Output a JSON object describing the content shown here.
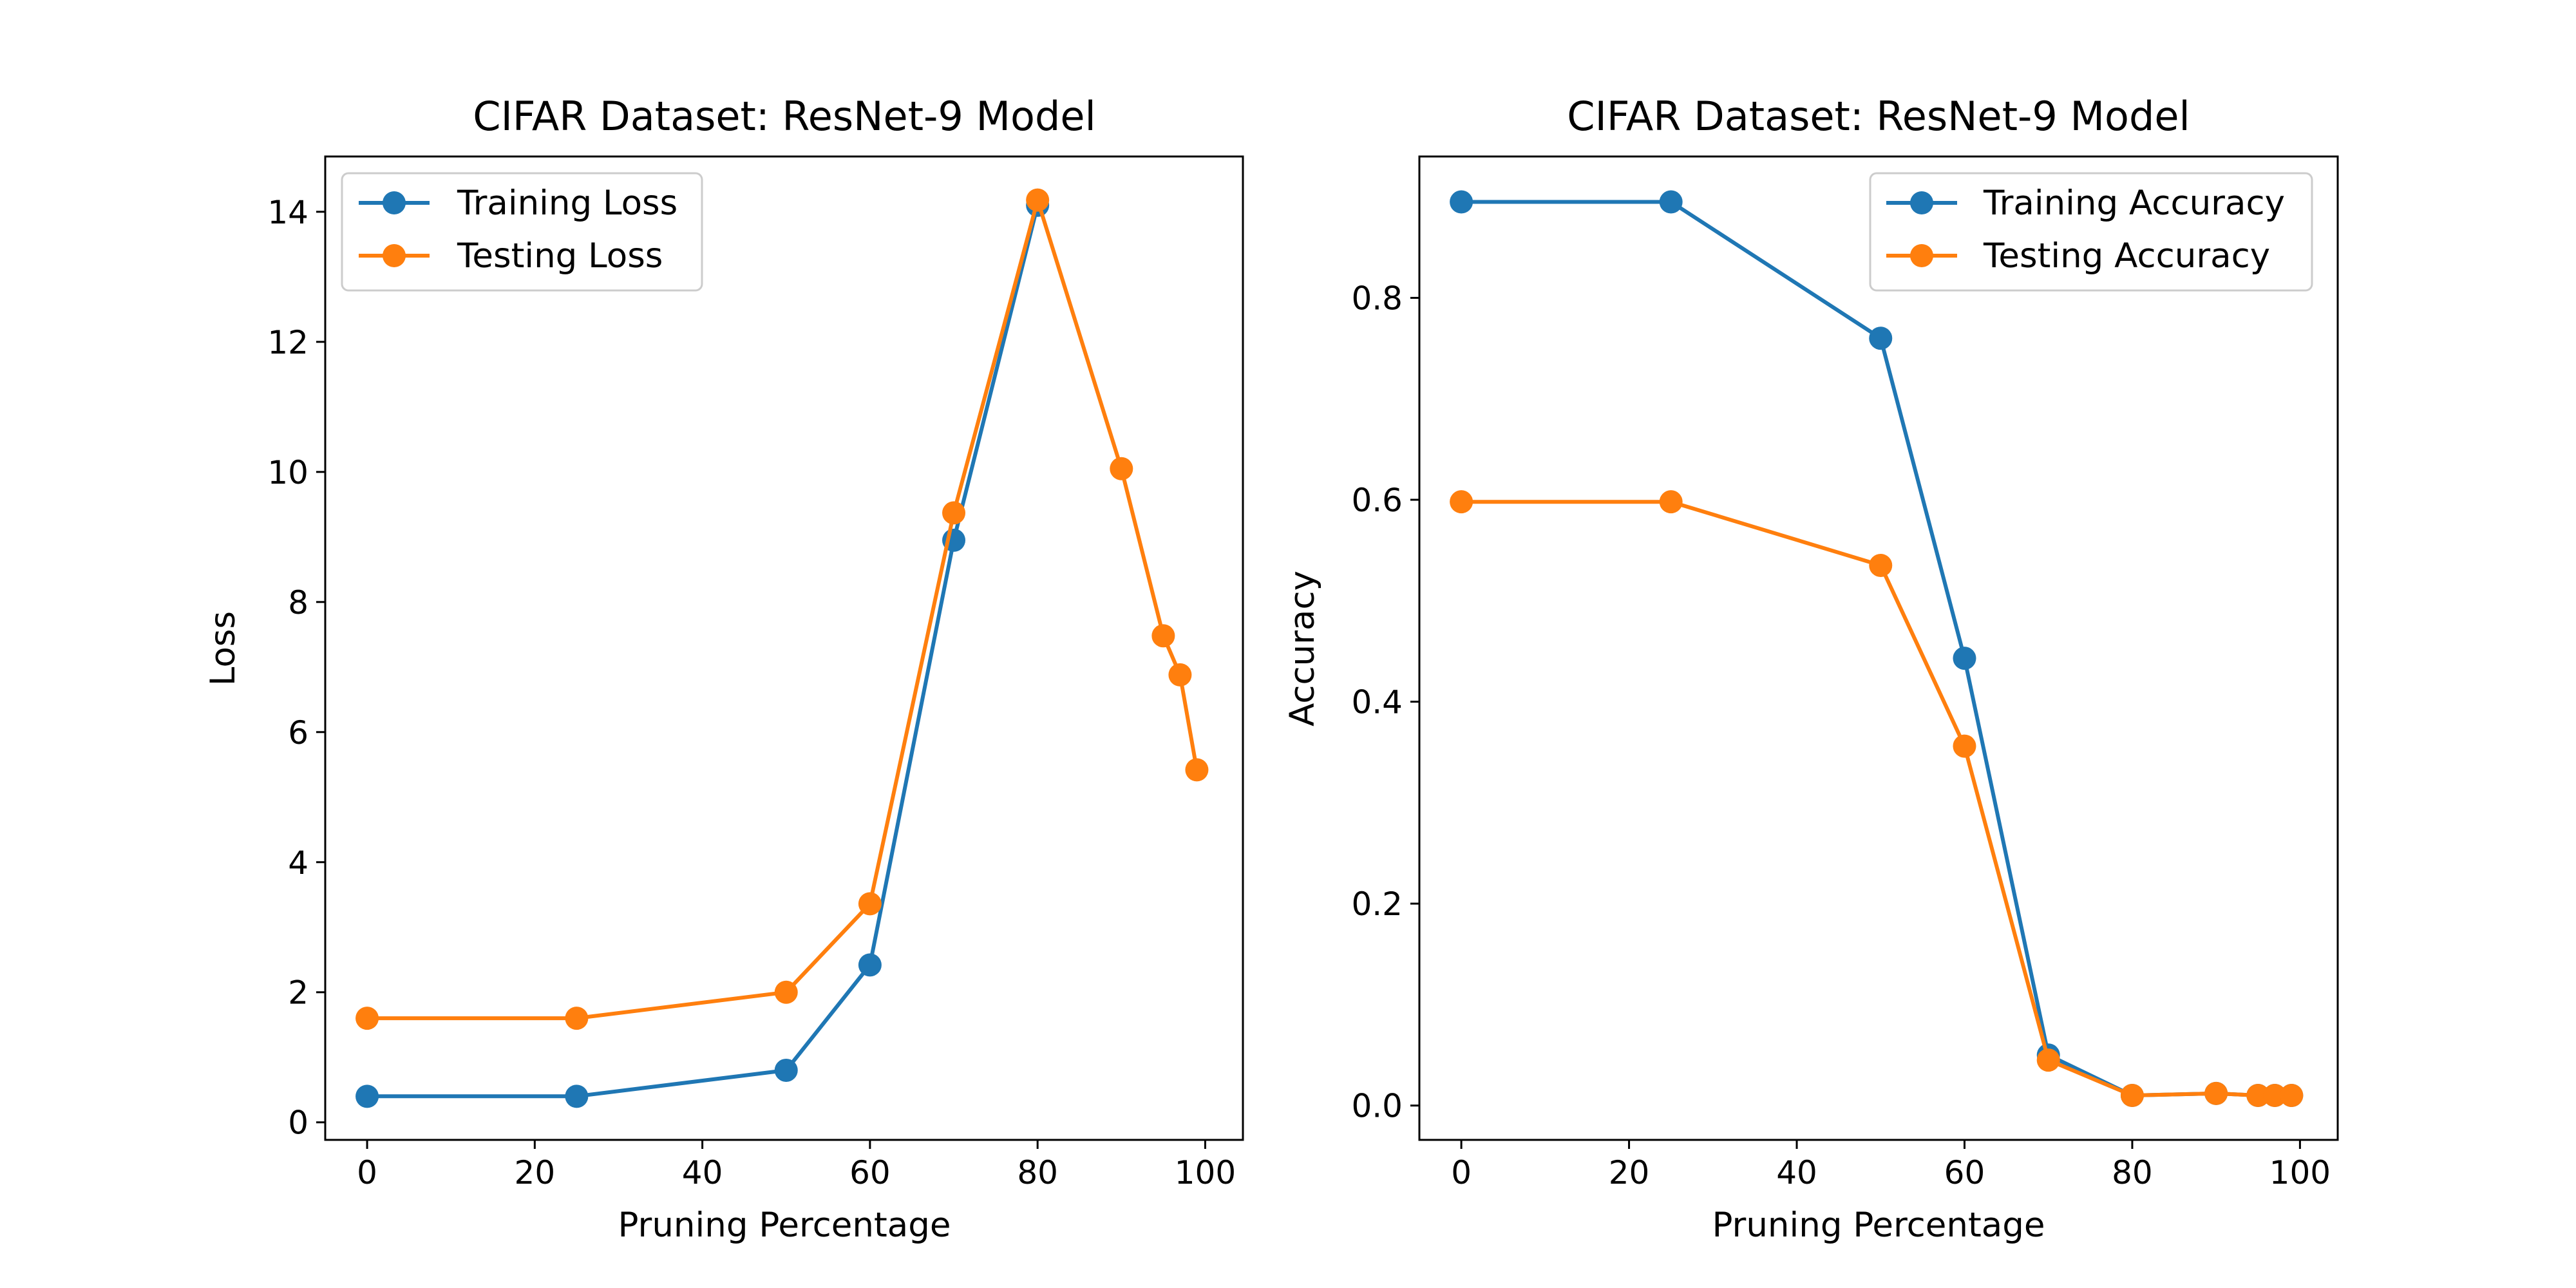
{
  "colors": {
    "series_a": "#1f77b4",
    "series_b": "#ff7f0e",
    "axes": "#000000",
    "background": "#ffffff"
  },
  "chart_data": [
    {
      "type": "line",
      "title": "CIFAR Dataset: ResNet-9 Model",
      "xlabel": "Pruning Percentage",
      "ylabel": "Loss",
      "xlim": [
        -5,
        104.5
      ],
      "ylim": [
        -0.27,
        14.85
      ],
      "xticks": [
        0,
        20,
        40,
        60,
        80,
        100
      ],
      "yticks": [
        0,
        2,
        4,
        6,
        8,
        10,
        12,
        14
      ],
      "grid": false,
      "legend_position": "top-left",
      "series": [
        {
          "name": "Training Loss",
          "color": "#1f77b4",
          "x": [
            0,
            25,
            50,
            60,
            70,
            80
          ],
          "y": [
            0.4,
            0.4,
            0.8,
            2.42,
            8.95,
            14.1
          ]
        },
        {
          "name": "Testing Loss",
          "color": "#ff7f0e",
          "x": [
            0,
            25,
            50,
            60,
            70,
            80,
            90,
            95,
            97,
            99
          ],
          "y": [
            1.6,
            1.6,
            2.0,
            3.36,
            9.37,
            14.18,
            10.05,
            7.48,
            6.88,
            5.42
          ]
        }
      ]
    },
    {
      "type": "line",
      "title": "CIFAR Dataset: ResNet-9 Model",
      "xlabel": "Pruning Percentage",
      "ylabel": "Accuracy",
      "xlim": [
        -5,
        104.5
      ],
      "ylim": [
        -0.034,
        0.94
      ],
      "xticks": [
        0,
        20,
        40,
        60,
        80,
        100
      ],
      "yticks": [
        0.0,
        0.2,
        0.4,
        0.6,
        0.8
      ],
      "ytick_labels": [
        "0.0",
        "0.2",
        "0.4",
        "0.6",
        "0.8"
      ],
      "grid": false,
      "legend_position": "top-right",
      "series": [
        {
          "name": "Training Accuracy",
          "color": "#1f77b4",
          "x": [
            0,
            25,
            50,
            60,
            70,
            80,
            90,
            95,
            97,
            99
          ],
          "y": [
            0.895,
            0.895,
            0.76,
            0.443,
            0.05,
            0.01,
            0.012,
            0.01,
            0.01,
            0.01
          ]
        },
        {
          "name": "Testing Accuracy",
          "color": "#ff7f0e",
          "x": [
            0,
            25,
            50,
            60,
            70,
            80,
            90,
            95,
            97,
            99
          ],
          "y": [
            0.598,
            0.598,
            0.535,
            0.356,
            0.045,
            0.01,
            0.012,
            0.01,
            0.01,
            0.01
          ]
        }
      ]
    }
  ]
}
